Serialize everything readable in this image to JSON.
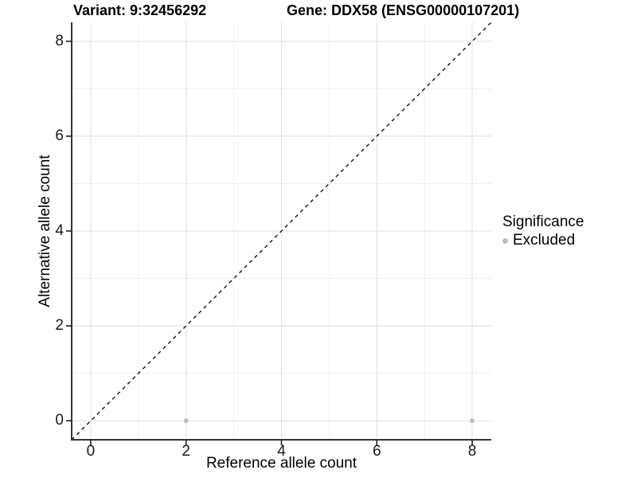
{
  "header": {
    "variant_title": "Variant: 9:32456292",
    "gene_title": "Gene: DDX58 (ENSG00000107201)"
  },
  "colors": {
    "background": "#ffffff",
    "axis_line": "#333333",
    "tick_mark": "#333333",
    "tick_text": "#1a1a1a",
    "grid_major": "#e3e3e3",
    "grid_minor": "#f0f0f0",
    "reference_line": "#111111",
    "excluded_point": "#bebebe"
  },
  "chart_data": {
    "type": "scatter",
    "title": "Variant: 9:32456292  Gene: DDX58 (ENSG00000107201)",
    "xlabel": "Reference allele count",
    "ylabel": "Alternative allele count",
    "xlim": [
      -0.4,
      8.4
    ],
    "ylim": [
      -0.4,
      8.4
    ],
    "grid": true,
    "x_ticks": {
      "values": [
        0,
        2,
        4,
        6,
        8
      ],
      "labels": [
        "0",
        "2",
        "4",
        "6",
        "8"
      ]
    },
    "y_ticks": {
      "values": [
        0,
        2,
        4,
        6,
        8
      ],
      "labels": [
        "0",
        "2",
        "4",
        "6",
        "8"
      ]
    },
    "x_minor": [
      1,
      3,
      5,
      7
    ],
    "y_minor": [
      1,
      3,
      5,
      7
    ],
    "reference_line": {
      "kind": "identity",
      "slope": 1,
      "intercept": 0,
      "style": "dashed"
    },
    "series": [
      {
        "name": "Excluded",
        "color": "#bebebe",
        "points": [
          {
            "x": 2,
            "y": 0
          },
          {
            "x": 8,
            "y": 0
          }
        ]
      }
    ],
    "legend": {
      "title": "Significance",
      "position": "right",
      "items": [
        {
          "label": "Excluded",
          "color": "#bebebe"
        }
      ]
    }
  }
}
